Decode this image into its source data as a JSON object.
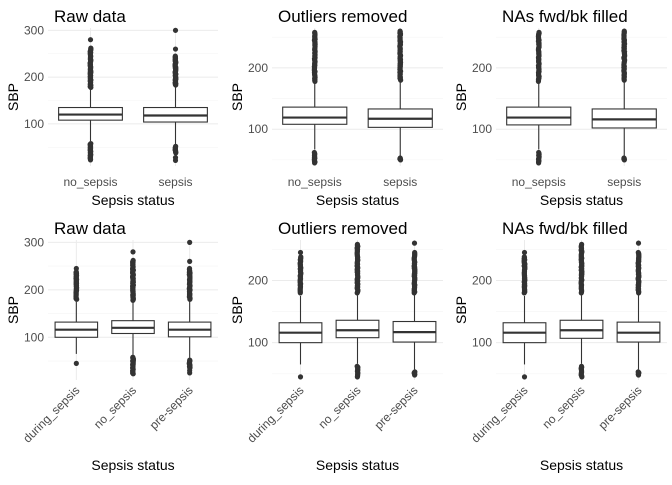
{
  "chart_data": [
    {
      "type": "boxplot",
      "title": "Raw data",
      "xlabel": "Sepsis status",
      "ylabel": "SBP",
      "categories": [
        "no_sepsis",
        "sepsis"
      ],
      "y_ticks": [
        100,
        200,
        300
      ],
      "ylim": [
        10,
        305
      ],
      "x_tick_rotation": 0,
      "boxes": [
        {
          "category": "no_sepsis",
          "lower_whisker": 63,
          "q1": 108,
          "median": 120,
          "q3": 135,
          "upper_whisker": 175,
          "outlier_low_range": [
            23,
            58
          ],
          "outlier_high_range": [
            178,
            262
          ],
          "outliers_extra": [
            280
          ]
        },
        {
          "category": "sepsis",
          "lower_whisker": 56,
          "q1": 104,
          "median": 118,
          "q3": 135,
          "upper_whisker": 180,
          "outlier_low_range": [
            38,
            52
          ],
          "outlier_high_range": [
            183,
            245
          ],
          "outliers_extra": [
            22,
            28,
            260,
            300
          ]
        }
      ]
    },
    {
      "type": "boxplot",
      "title": "Outliers removed",
      "xlabel": "Sepsis status",
      "ylabel": "SBP",
      "categories": [
        "no_sepsis",
        "sepsis"
      ],
      "y_ticks": [
        100,
        200
      ],
      "ylim": [
        40,
        265
      ],
      "x_tick_rotation": 0,
      "boxes": [
        {
          "category": "no_sepsis",
          "lower_whisker": 67,
          "q1": 108,
          "median": 119,
          "q3": 136,
          "upper_whisker": 175,
          "outlier_low_range": [
            45,
            62
          ],
          "outlier_high_range": [
            178,
            258
          ],
          "outliers_extra": []
        },
        {
          "category": "sepsis",
          "lower_whisker": 55,
          "q1": 103,
          "median": 117,
          "q3": 133,
          "upper_whisker": 178,
          "outlier_low_range": [
            50,
            53
          ],
          "outlier_high_range": [
            180,
            260
          ],
          "outliers_extra": []
        }
      ]
    },
    {
      "type": "boxplot",
      "title": "NAs fwd/bk filled",
      "xlabel": "Sepsis status",
      "ylabel": "SBP",
      "categories": [
        "no_sepsis",
        "sepsis"
      ],
      "y_ticks": [
        100,
        200
      ],
      "ylim": [
        40,
        265
      ],
      "x_tick_rotation": 0,
      "boxes": [
        {
          "category": "no_sepsis",
          "lower_whisker": 67,
          "q1": 107,
          "median": 119,
          "q3": 136,
          "upper_whisker": 175,
          "outlier_low_range": [
            45,
            62
          ],
          "outlier_high_range": [
            178,
            258
          ],
          "outliers_extra": []
        },
        {
          "category": "sepsis",
          "lower_whisker": 57,
          "q1": 102,
          "median": 116,
          "q3": 133,
          "upper_whisker": 178,
          "outlier_low_range": [
            50,
            53
          ],
          "outlier_high_range": [
            180,
            260
          ],
          "outliers_extra": []
        }
      ]
    },
    {
      "type": "boxplot",
      "title": "Raw data",
      "xlabel": "Sepsis status",
      "ylabel": "SBP",
      "categories": [
        "during_sepsis",
        "no_sepsis",
        "pre-sepsis"
      ],
      "y_ticks": [
        100,
        200,
        300
      ],
      "ylim": [
        10,
        305
      ],
      "x_tick_rotation": -45,
      "boxes": [
        {
          "category": "during_sepsis",
          "lower_whisker": 65,
          "q1": 100,
          "median": 116,
          "q3": 132,
          "upper_whisker": 175,
          "outlier_low_range": [],
          "outlier_high_range": [
            180,
            238
          ],
          "outliers_extra": [
            45,
            245
          ]
        },
        {
          "category": "no_sepsis",
          "lower_whisker": 63,
          "q1": 108,
          "median": 120,
          "q3": 135,
          "upper_whisker": 175,
          "outlier_low_range": [
            23,
            58
          ],
          "outlier_high_range": [
            178,
            262
          ],
          "outliers_extra": [
            280
          ]
        },
        {
          "category": "pre-sepsis",
          "lower_whisker": 57,
          "q1": 101,
          "median": 116,
          "q3": 132,
          "upper_whisker": 178,
          "outlier_low_range": [
            35,
            52
          ],
          "outlier_high_range": [
            180,
            245
          ],
          "outliers_extra": [
            25,
            30,
            260,
            300
          ]
        }
      ]
    },
    {
      "type": "boxplot",
      "title": "Outliers removed",
      "xlabel": "Sepsis status",
      "ylabel": "SBP",
      "categories": [
        "during_sepsis",
        "no_sepsis",
        "pre-sepsis"
      ],
      "y_ticks": [
        100,
        200
      ],
      "ylim": [
        40,
        265
      ],
      "x_tick_rotation": -45,
      "boxes": [
        {
          "category": "during_sepsis",
          "lower_whisker": 65,
          "q1": 100,
          "median": 116,
          "q3": 132,
          "upper_whisker": 175,
          "outlier_low_range": [],
          "outlier_high_range": [
            180,
            238
          ],
          "outliers_extra": [
            45,
            245
          ]
        },
        {
          "category": "no_sepsis",
          "lower_whisker": 66,
          "q1": 108,
          "median": 120,
          "q3": 136,
          "upper_whisker": 176,
          "outlier_low_range": [
            45,
            62
          ],
          "outlier_high_range": [
            180,
            258
          ],
          "outliers_extra": []
        },
        {
          "category": "pre-sepsis",
          "lower_whisker": 57,
          "q1": 101,
          "median": 117,
          "q3": 134,
          "upper_whisker": 178,
          "outlier_low_range": [
            48,
            53
          ],
          "outlier_high_range": [
            180,
            245
          ],
          "outliers_extra": [
            260
          ]
        }
      ]
    },
    {
      "type": "boxplot",
      "title": "NAs fwd/bk filled",
      "xlabel": "Sepsis status",
      "ylabel": "SBP",
      "categories": [
        "during_sepsis",
        "no_sepsis",
        "pre-sepsis"
      ],
      "y_ticks": [
        100,
        200
      ],
      "ylim": [
        40,
        265
      ],
      "x_tick_rotation": -45,
      "boxes": [
        {
          "category": "during_sepsis",
          "lower_whisker": 65,
          "q1": 100,
          "median": 116,
          "q3": 132,
          "upper_whisker": 175,
          "outlier_low_range": [],
          "outlier_high_range": [
            180,
            238
          ],
          "outliers_extra": [
            45,
            245
          ]
        },
        {
          "category": "no_sepsis",
          "lower_whisker": 66,
          "q1": 107,
          "median": 120,
          "q3": 136,
          "upper_whisker": 176,
          "outlier_low_range": [
            45,
            62
          ],
          "outlier_high_range": [
            180,
            258
          ],
          "outliers_extra": []
        },
        {
          "category": "pre-sepsis",
          "lower_whisker": 57,
          "q1": 101,
          "median": 116,
          "q3": 133,
          "upper_whisker": 178,
          "outlier_low_range": [
            48,
            53
          ],
          "outlier_high_range": [
            180,
            245
          ],
          "outliers_extra": [
            260
          ]
        }
      ]
    }
  ]
}
